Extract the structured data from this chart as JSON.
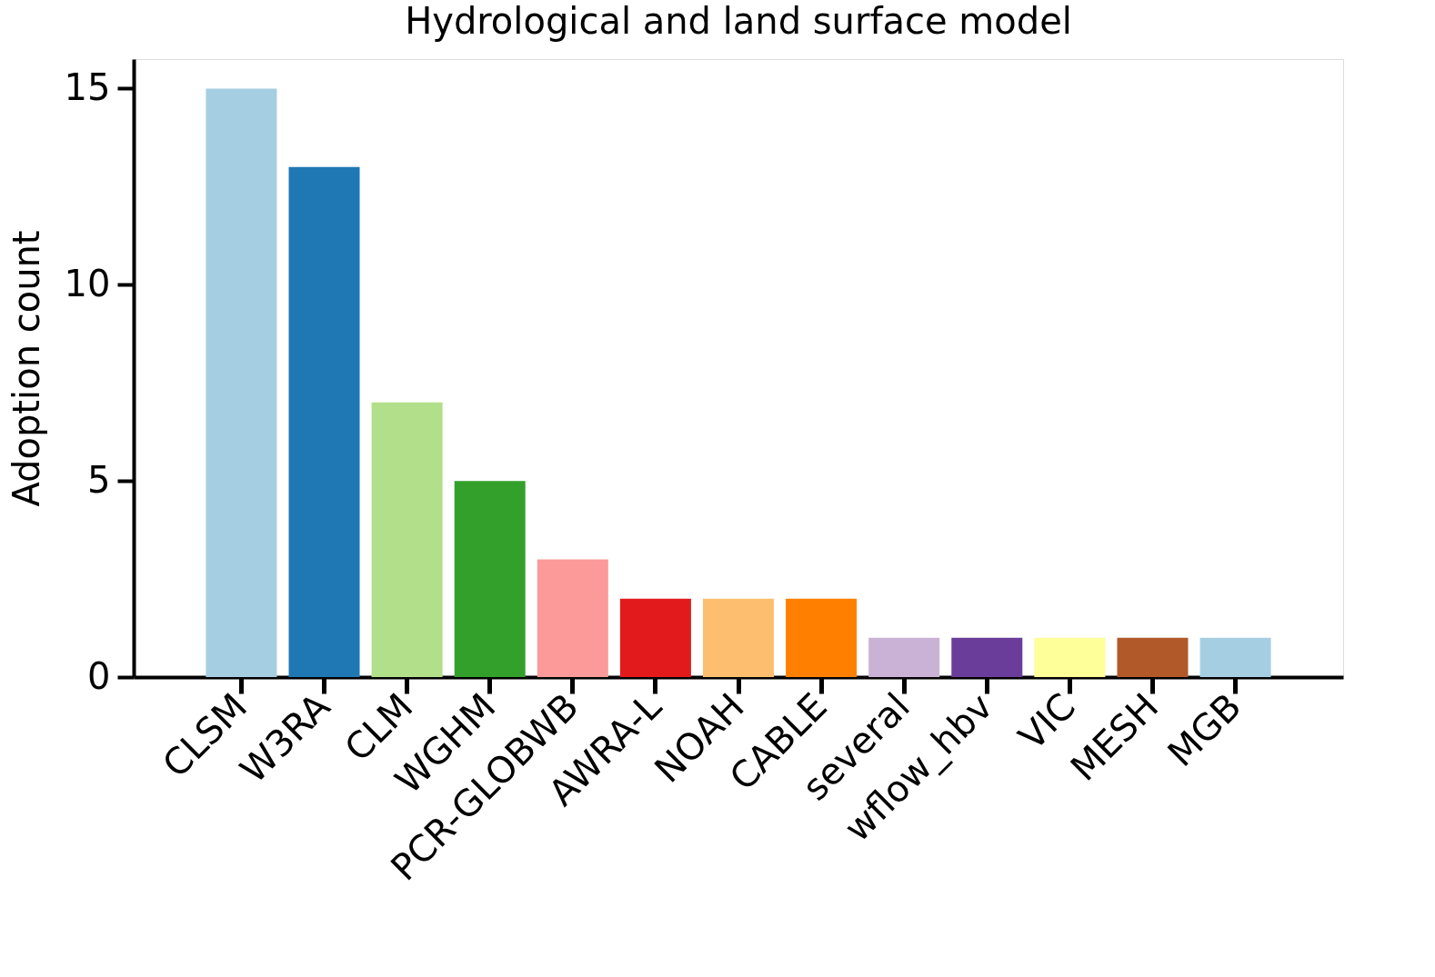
{
  "chart_data": {
    "type": "bar",
    "title": "Hydrological and land surface model",
    "ylabel": "Adoption count",
    "categories": [
      "CLSM",
      "W3RA",
      "CLM",
      "WGHM",
      "PCR-GLOBWB",
      "AWRA-L",
      "NOAH",
      "CABLE",
      "several",
      "wflow_hbv",
      "VIC",
      "MESH",
      "MGB"
    ],
    "values": [
      15,
      13,
      7,
      5,
      3,
      2,
      2,
      2,
      1,
      1,
      1,
      1,
      1
    ],
    "colors": [
      "#a6cee3",
      "#1f78b4",
      "#b2df8a",
      "#33a02c",
      "#fb9a99",
      "#e31a1c",
      "#fdbf6f",
      "#ff7f00",
      "#cab2d6",
      "#6a3d9a",
      "#ffff99",
      "#b15928",
      "#a6cee3"
    ],
    "ylim": [
      0,
      15.75
    ],
    "yticks": [
      0,
      5,
      10,
      15
    ],
    "grid": false,
    "legend": false
  }
}
